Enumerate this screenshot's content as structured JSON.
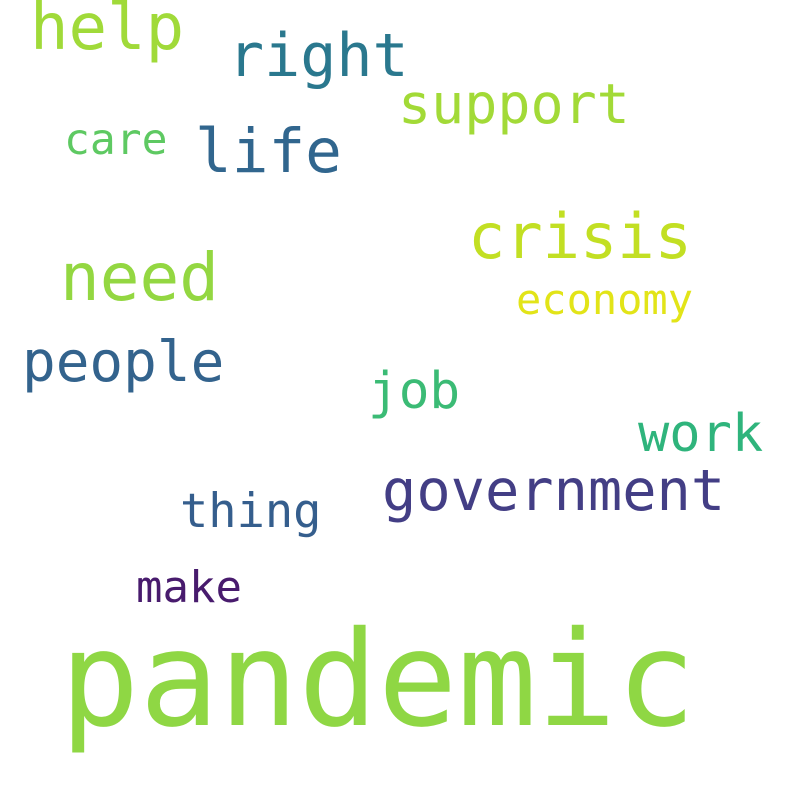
{
  "background": "#ffffff",
  "words": {
    "pandemic": {
      "text": "pandemic",
      "color": "#8fd744"
    },
    "help": {
      "text": "help",
      "color": "#a0da39"
    },
    "need": {
      "text": "need",
      "color": "#93d741"
    },
    "right": {
      "text": "right",
      "color": "#2a788e"
    },
    "support": {
      "text": "support",
      "color": "#a2da37"
    },
    "crisis": {
      "text": "crisis",
      "color": "#c2df23"
    },
    "life": {
      "text": "life",
      "color": "#31668e"
    },
    "people": {
      "text": "people",
      "color": "#33638d"
    },
    "government": {
      "text": "government",
      "color": "#433e85"
    },
    "care": {
      "text": "care",
      "color": "#5ec962"
    },
    "economy": {
      "text": "economy",
      "color": "#e2e418"
    },
    "job": {
      "text": "job",
      "color": "#3bbb75"
    },
    "work": {
      "text": "work",
      "color": "#2fb47c"
    },
    "thing": {
      "text": "thing",
      "color": "#355e8d"
    },
    "make": {
      "text": "make",
      "color": "#481b6d"
    }
  }
}
